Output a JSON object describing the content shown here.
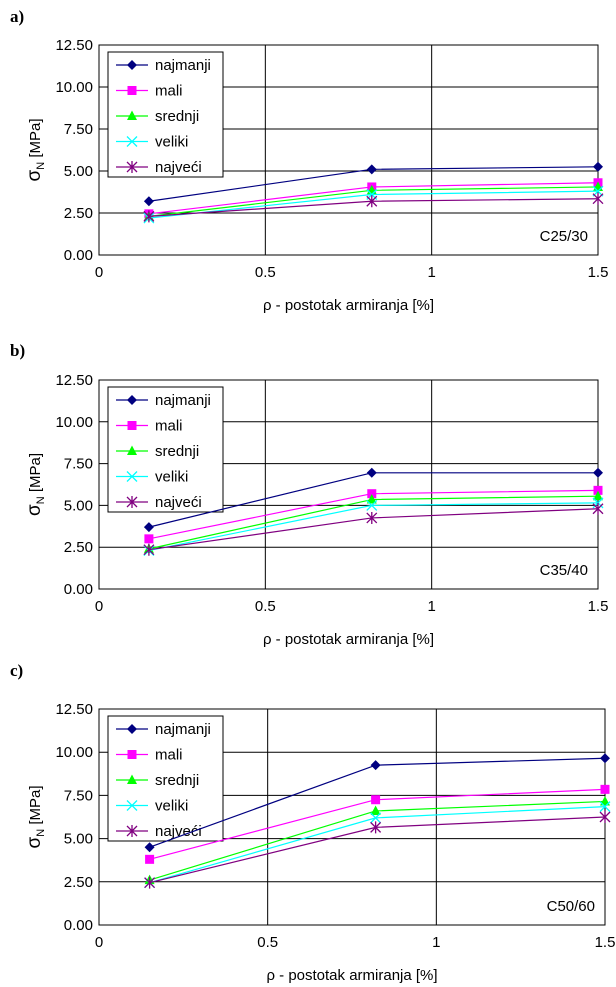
{
  "colors": {
    "najmanji": "#000080",
    "mali": "#ff00ff",
    "srednji": "#00ff00",
    "veliki": "#00ffff",
    "najveci": "#800080",
    "grid": "#000000",
    "background": "#ffffff"
  },
  "chart_data": [
    {
      "panel_label": "a)",
      "type": "line",
      "annotation": "C25/30",
      "xlabel": "ρ - postotak armiranja [%]",
      "ylabel_main": "σ",
      "ylabel_sub": "N",
      "ylabel_unit": " [MPa]",
      "xlim": [
        0,
        1.5
      ],
      "ylim": [
        0,
        12.5
      ],
      "x_ticks": [
        "0",
        "0.5",
        "1",
        "1.5"
      ],
      "x_tick_values": [
        0,
        0.5,
        1,
        1.5
      ],
      "y_ticks": [
        "0.00",
        "2.50",
        "5.00",
        "7.50",
        "10.00",
        "12.50"
      ],
      "y_tick_values": [
        0,
        2.5,
        5,
        7.5,
        10,
        12.5
      ],
      "grid": true,
      "legend_position": "top-left",
      "x": [
        0.15,
        0.82,
        1.5
      ],
      "series": [
        {
          "name": "najmanji",
          "marker": "diamond",
          "values": [
            3.2,
            5.1,
            5.25
          ]
        },
        {
          "name": "mali",
          "marker": "square",
          "values": [
            2.45,
            4.05,
            4.3
          ]
        },
        {
          "name": "srednji",
          "marker": "triangle",
          "values": [
            2.3,
            3.85,
            4.05
          ]
        },
        {
          "name": "veliki",
          "marker": "x",
          "values": [
            2.2,
            3.6,
            3.8
          ]
        },
        {
          "name": "najveći",
          "marker": "star",
          "values": [
            2.3,
            3.2,
            3.35
          ]
        }
      ]
    },
    {
      "panel_label": "b)",
      "type": "line",
      "annotation": "C35/40",
      "xlabel": "ρ - postotak armiranja [%]",
      "ylabel_main": "σ",
      "ylabel_sub": "N",
      "ylabel_unit": " [MPa]",
      "xlim": [
        0,
        1.5
      ],
      "ylim": [
        0,
        12.5
      ],
      "x_ticks": [
        "0",
        "0.5",
        "1",
        "1.5"
      ],
      "x_tick_values": [
        0,
        0.5,
        1,
        1.5
      ],
      "y_ticks": [
        "0.00",
        "2.50",
        "5.00",
        "7.50",
        "10.00",
        "12.50"
      ],
      "y_tick_values": [
        0,
        2.5,
        5,
        7.5,
        10,
        12.5
      ],
      "grid": true,
      "legend_position": "top-left",
      "x": [
        0.15,
        0.82,
        1.5
      ],
      "series": [
        {
          "name": "najmanji",
          "marker": "diamond",
          "values": [
            3.7,
            6.95,
            6.95
          ]
        },
        {
          "name": "mali",
          "marker": "square",
          "values": [
            3.0,
            5.7,
            5.9
          ]
        },
        {
          "name": "srednji",
          "marker": "triangle",
          "values": [
            2.4,
            5.35,
            5.55
          ]
        },
        {
          "name": "veliki",
          "marker": "x",
          "values": [
            2.3,
            5.0,
            5.15
          ]
        },
        {
          "name": "najveći",
          "marker": "star",
          "values": [
            2.35,
            4.25,
            4.8
          ]
        }
      ]
    },
    {
      "panel_label": "c)",
      "type": "line",
      "annotation": "C50/60",
      "xlabel": "ρ - postotak armiranja [%]",
      "ylabel_main": "σ",
      "ylabel_sub": "N",
      "ylabel_unit": " [MPa]",
      "xlim": [
        0,
        1.5
      ],
      "ylim": [
        0,
        12.5
      ],
      "x_ticks": [
        "0",
        "0.5",
        "1",
        "1.5"
      ],
      "x_tick_values": [
        0,
        0.5,
        1,
        1.5
      ],
      "y_ticks": [
        "0.00",
        "2.50",
        "5.00",
        "7.50",
        "10.00",
        "12.50"
      ],
      "y_tick_values": [
        0,
        2.5,
        5,
        7.5,
        10,
        12.5
      ],
      "grid": true,
      "legend_position": "top-left",
      "x": [
        0.15,
        0.82,
        1.5
      ],
      "series": [
        {
          "name": "najmanji",
          "marker": "diamond",
          "values": [
            4.5,
            9.25,
            9.65
          ]
        },
        {
          "name": "mali",
          "marker": "square",
          "values": [
            3.8,
            7.25,
            7.85
          ]
        },
        {
          "name": "srednji",
          "marker": "triangle",
          "values": [
            2.6,
            6.6,
            7.15
          ]
        },
        {
          "name": "veliki",
          "marker": "x",
          "values": [
            2.45,
            6.2,
            6.85
          ]
        },
        {
          "name": "najveći",
          "marker": "star",
          "values": [
            2.45,
            5.65,
            6.25
          ]
        }
      ]
    }
  ]
}
